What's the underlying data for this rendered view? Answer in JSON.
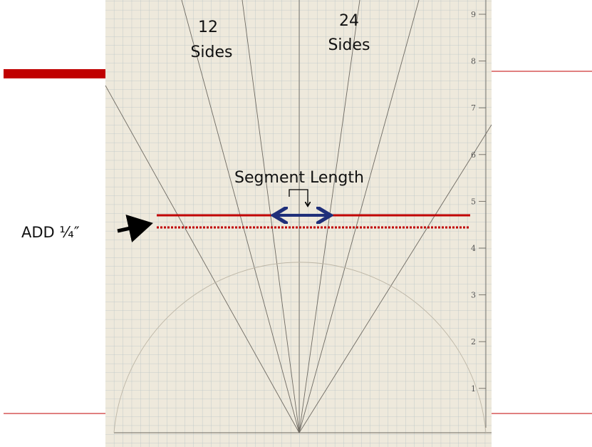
{
  "slide": {
    "label_12": {
      "number": "12",
      "word": "Sides"
    },
    "label_24": {
      "number": "24",
      "word": "Sides"
    },
    "segment_label": "Segment Length",
    "add_label": "ADD ¼″",
    "ruler_marks": [
      "9",
      "8",
      "7",
      "6",
      "5",
      "4",
      "3",
      "2",
      "1"
    ]
  }
}
